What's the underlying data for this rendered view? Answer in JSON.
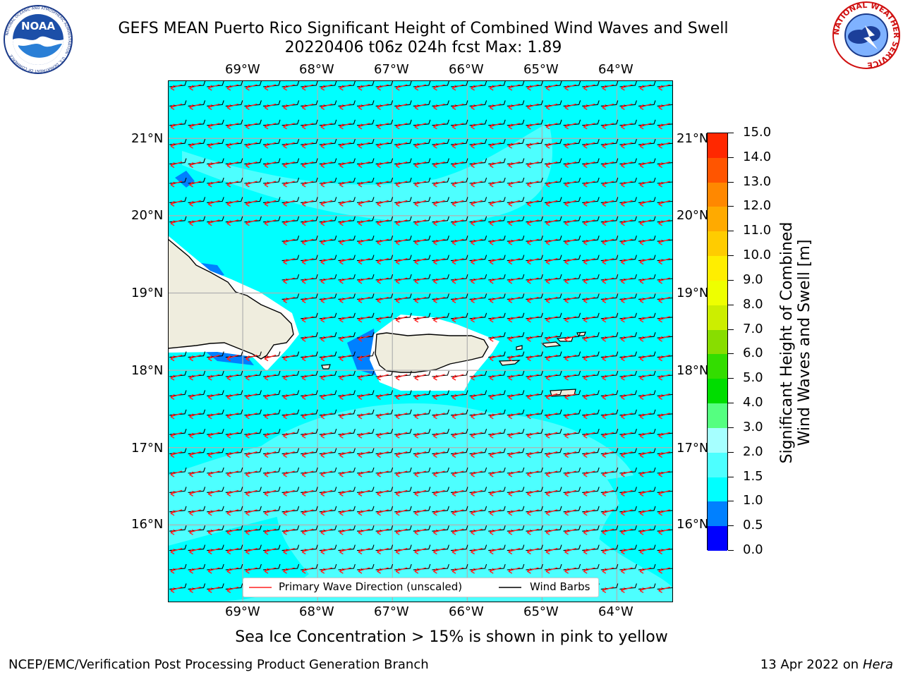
{
  "header": {
    "title_line1": "GEFS MEAN Puerto Rico Significant Height of Combined Wind Waves and Swell",
    "title_line2": "20220406 t06z 024h fcst   Max: 1.89"
  },
  "logos": {
    "left": {
      "name": "noaa-logo",
      "text": "NOAA",
      "ring_text": "NATIONAL OCEANIC AND ATMOSPHERIC ADMINISTRATION · U.S. DEPARTMENT OF COMMERCE"
    },
    "right": {
      "name": "nws-logo",
      "ring_text": "NATIONAL WEATHER SERVICE"
    }
  },
  "map": {
    "lon_labels": [
      "69°W",
      "68°W",
      "67°W",
      "66°W",
      "65°W",
      "64°W"
    ],
    "lat_labels": [
      "21°N",
      "20°N",
      "19°N",
      "18°N",
      "17°N",
      "16°N"
    ],
    "lon_ticks": [
      -69,
      -68,
      -67,
      -66,
      -65,
      -64
    ],
    "lat_ticks": [
      21,
      20,
      19,
      18,
      17,
      16
    ],
    "lon_range": [
      -70.0,
      -63.25
    ],
    "lat_range": [
      15.0,
      21.75
    ],
    "max_value": 1.89,
    "colors": {
      "sea_low": "#00ffff",
      "sea_mid": "#4dffff",
      "sea_dark": "#0080ff",
      "sea_darker": "#0040ff",
      "land": "#efedde",
      "grid": "#b0b0b0",
      "wave_arrow": "#ff2020",
      "wind_barb": "#000000"
    }
  },
  "legend": {
    "wave_label": "Primary Wave Direction (unscaled)",
    "wind_label": "Wind Barbs"
  },
  "colorbar": {
    "labels": [
      "15.0",
      "14.0",
      "13.0",
      "12.0",
      "11.0",
      "10.0",
      "9.0",
      "8.0",
      "7.0",
      "6.0",
      "5.0",
      "4.0",
      "3.0",
      "2.0",
      "1.5",
      "1.0",
      "0.5",
      "0.0"
    ],
    "colors": [
      "#0000ff",
      "#0080ff",
      "#00ffff",
      "#4dffff",
      "#a6ffff",
      "#55ff80",
      "#00dd00",
      "#33dd00",
      "#88dd00",
      "#ccee00",
      "#eeff00",
      "#ffee00",
      "#ffcc00",
      "#ffaa00",
      "#ff8800",
      "#ff5500",
      "#ff2800"
    ],
    "axis_label_line1": "Significant Height of Combined",
    "axis_label_line2": "Wind Waves and Swell [m]"
  },
  "caption": "Sea Ice Concentration > 15% is shown in pink to yellow",
  "footer": {
    "left": "NCEP/EMC/Verification Post Processing Product Generation Branch",
    "right_prefix": "13 Apr 2022 on ",
    "right_host": "Hera"
  }
}
